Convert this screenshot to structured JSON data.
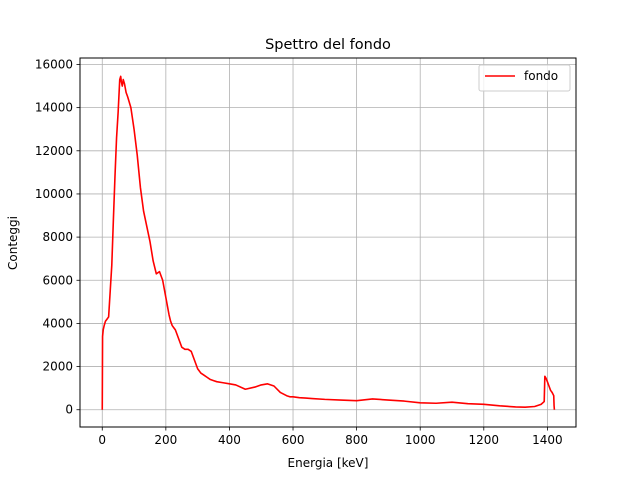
{
  "chart_data": {
    "type": "line",
    "title": "Spettro del fondo",
    "xlabel": "Energia [keV]",
    "ylabel": "Conteggi",
    "xlim": [
      -70,
      1490
    ],
    "ylim": [
      -800,
      16300
    ],
    "xticks": [
      0,
      200,
      400,
      600,
      800,
      1000,
      1200,
      1400
    ],
    "yticks": [
      0,
      2000,
      4000,
      6000,
      8000,
      10000,
      12000,
      14000,
      16000
    ],
    "grid": true,
    "legend_position": "top-right",
    "series": [
      {
        "name": "fondo",
        "color": "#ff0000",
        "x": [
          0,
          1,
          3,
          6,
          10,
          15,
          20,
          25,
          30,
          35,
          40,
          45,
          50,
          55,
          58,
          60,
          63,
          66,
          70,
          75,
          80,
          90,
          100,
          110,
          120,
          130,
          140,
          150,
          160,
          170,
          180,
          190,
          200,
          205,
          210,
          215,
          220,
          225,
          230,
          240,
          250,
          260,
          270,
          280,
          290,
          300,
          310,
          320,
          330,
          340,
          350,
          360,
          380,
          400,
          420,
          450,
          480,
          500,
          520,
          540,
          560,
          580,
          590,
          600,
          620,
          640,
          660,
          700,
          750,
          800,
          850,
          900,
          950,
          1000,
          1050,
          1100,
          1150,
          1200,
          1250,
          1300,
          1330,
          1360,
          1380,
          1390,
          1392,
          1396,
          1400,
          1405,
          1410,
          1415,
          1420,
          1421,
          1422
        ],
        "y": [
          0,
          3400,
          3700,
          3900,
          4100,
          4200,
          4300,
          5500,
          6700,
          8800,
          10800,
          12600,
          13800,
          15300,
          15450,
          15200,
          15000,
          15300,
          15100,
          14700,
          14500,
          14000,
          13000,
          11800,
          10300,
          9200,
          8500,
          7800,
          6900,
          6300,
          6400,
          6000,
          5200,
          4800,
          4400,
          4100,
          3900,
          3800,
          3700,
          3300,
          2900,
          2800,
          2800,
          2700,
          2300,
          1900,
          1700,
          1600,
          1500,
          1400,
          1350,
          1300,
          1250,
          1200,
          1150,
          950,
          1050,
          1150,
          1200,
          1100,
          800,
          650,
          600,
          600,
          560,
          540,
          520,
          480,
          450,
          420,
          500,
          450,
          400,
          320,
          300,
          350,
          280,
          250,
          180,
          130,
          120,
          150,
          250,
          380,
          1550,
          1450,
          1300,
          1100,
          900,
          800,
          650,
          200,
          0
        ]
      }
    ]
  }
}
